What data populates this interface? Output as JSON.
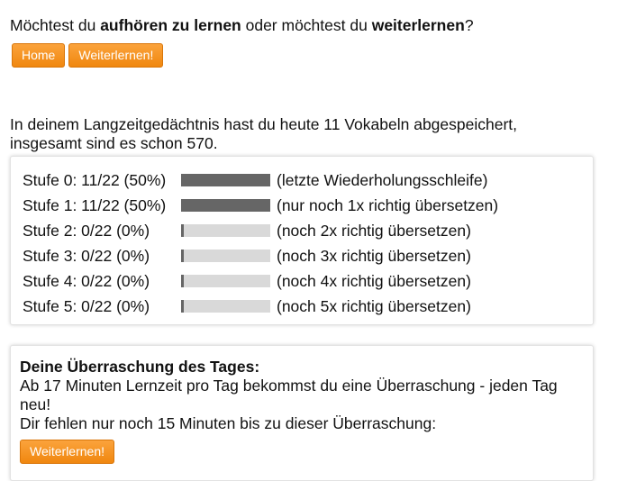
{
  "question": {
    "part1": "Möchtest du ",
    "bold1": "aufhören zu lernen",
    "part2": " oder möchtest du ",
    "bold2": "weiterlernen",
    "part3": "?"
  },
  "buttons": {
    "home": "Home",
    "continue": "Weiterlernen!"
  },
  "memory": {
    "line1": "In deinem Langzeitgedächtnis hast du heute 11 Vokabeln abgespeichert,",
    "line2": "insgesamt sind es schon 570."
  },
  "stages": [
    {
      "label": "Stufe 0: 11/22 (50%)",
      "progress": 1.0,
      "note": "(letzte Wiederholungsschleife)"
    },
    {
      "label": "Stufe 1: 11/22 (50%)",
      "progress": 1.0,
      "note": "(nur noch 1x richtig übersetzen)"
    },
    {
      "label": "Stufe 2: 0/22 (0%)",
      "progress": 0.0,
      "note": "(noch 2x richtig übersetzen)"
    },
    {
      "label": "Stufe 3: 0/22 (0%)",
      "progress": 0.0,
      "note": "(noch 3x richtig übersetzen)"
    },
    {
      "label": "Stufe 4: 0/22 (0%)",
      "progress": 0.0,
      "note": "(noch 4x richtig übersetzen)"
    },
    {
      "label": "Stufe 5: 0/22 (0%)",
      "progress": 0.0,
      "note": "(noch 5x richtig übersetzen)"
    }
  ],
  "surprise": {
    "title": "Deine Überraschung des Tages:",
    "text1": "Ab 17 Minuten Lernzeit pro Tag bekommst du eine Überraschung - jeden Tag neu!",
    "text2": "Dir fehlen nur noch 15 Minuten bis zu dieser Überraschung:",
    "button": "Weiterlernen!"
  },
  "colors": {
    "accent": "#f28b1a",
    "bar_fill": "#666666",
    "bar_track": "#d9d9d9"
  }
}
